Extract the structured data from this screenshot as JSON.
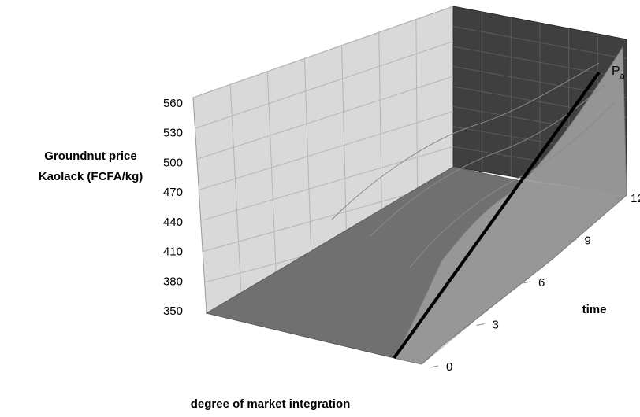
{
  "chart_data": {
    "type": "surface",
    "ylabel": [
      "Groundnut price",
      "Kaolack (FCFA/kg)"
    ],
    "xlabel": "degree of market integration",
    "zlabel": "time",
    "y_ticks": [
      "560",
      "530",
      "500",
      "470",
      "440",
      "410",
      "380",
      "350"
    ],
    "time_ticks": [
      "0",
      "3",
      "6",
      "9",
      "12"
    ],
    "ylim": [
      350,
      560
    ],
    "time_range": [
      0,
      12
    ],
    "line_label_base": "P",
    "line_label_sub": "a",
    "grid": true,
    "colors": {
      "back_wall": "#3f3f3f",
      "side_wall": "#d9d9d9",
      "floor": "#f2f2f2",
      "surface_front": "#707070",
      "surface_top": "#9a9a9a",
      "price_line": "#000000"
    }
  }
}
